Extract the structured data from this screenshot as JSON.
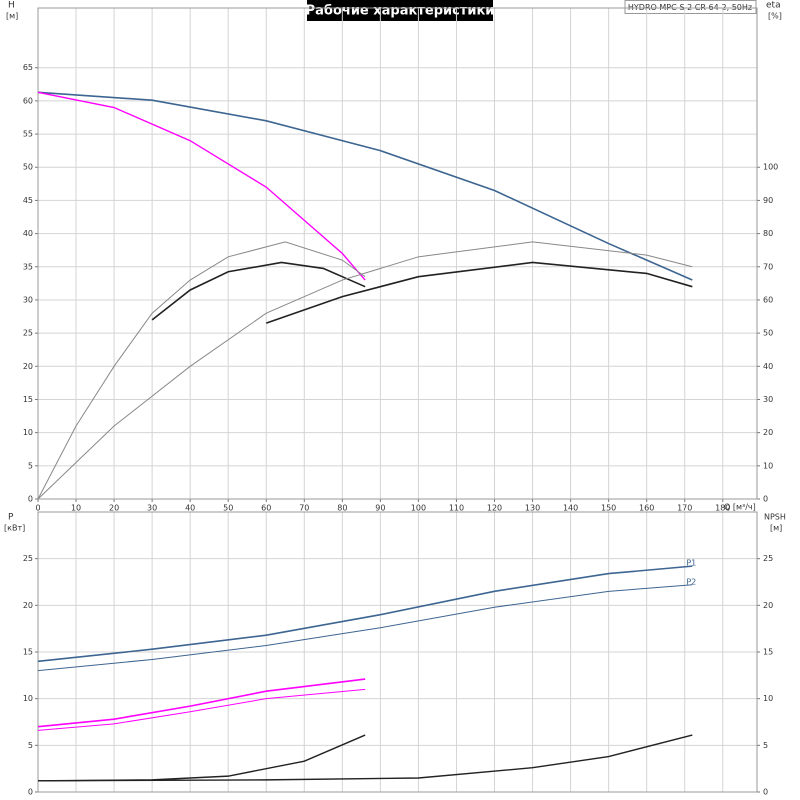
{
  "chart_data": [
    {
      "type": "line",
      "title": "Рабочие характеристики",
      "subtitle": "HYDRO MPC-S 2 CR 64-2, 50Hz",
      "y_label": "H",
      "y_unit": "[м]",
      "y2_label": "eta",
      "y2_unit": "[%]",
      "x_label": "Q [м³/ч]",
      "xlim": [
        0,
        189
      ],
      "xticks": [
        0,
        10,
        20,
        30,
        40,
        50,
        60,
        70,
        80,
        90,
        100,
        110,
        120,
        130,
        140,
        150,
        160,
        170,
        180
      ],
      "ylim": [
        0,
        74
      ],
      "yticks": [
        0,
        5,
        10,
        15,
        20,
        25,
        30,
        35,
        40,
        45,
        50,
        55,
        60,
        65
      ],
      "y2lim": [
        0,
        148
      ],
      "y2ticks": [
        0,
        10,
        20,
        30,
        40,
        50,
        60,
        70,
        80,
        90,
        100
      ],
      "grid": true,
      "series": [
        {
          "color": "#3d6591",
          "width": 1.6,
          "x": [
            0,
            30,
            60,
            90,
            120,
            150,
            172
          ],
          "values": [
            61.3,
            60.1,
            57,
            52.5,
            46.5,
            38.5,
            33
          ]
        },
        {
          "color": "#ff00ff",
          "width": 1.4,
          "x": [
            0,
            20,
            40,
            60,
            80,
            86
          ],
          "values": [
            61.3,
            59,
            54,
            47,
            37,
            33
          ]
        },
        {
          "color": "#888888",
          "width": 1,
          "axis": "y2",
          "x": [
            0,
            10,
            20,
            30,
            40,
            50,
            65,
            80,
            86
          ],
          "values": [
            0,
            22,
            40,
            56,
            66,
            73,
            77.5,
            72,
            67
          ]
        },
        {
          "color": "#222222",
          "width": 1.6,
          "axis": "y2",
          "x": [
            30,
            40,
            50,
            64,
            75,
            86
          ],
          "values": [
            54,
            63,
            68.5,
            71.3,
            69.5,
            64
          ]
        },
        {
          "color": "#888888",
          "width": 1,
          "axis": "y2",
          "x": [
            0,
            20,
            40,
            60,
            80,
            100,
            130,
            160,
            172
          ],
          "values": [
            0,
            22,
            40,
            56,
            66,
            73,
            77.5,
            73.5,
            70
          ]
        },
        {
          "color": "#222222",
          "width": 1.6,
          "axis": "y2",
          "x": [
            60,
            80,
            100,
            130,
            160,
            172
          ],
          "values": [
            53,
            61,
            67,
            71.3,
            68,
            64
          ]
        }
      ]
    },
    {
      "type": "line",
      "y_label": "P",
      "y_unit": "[кВт]",
      "y2_label": "NPSH",
      "y2_unit": "[м]",
      "xlim": [
        0,
        189
      ],
      "ylim": [
        0,
        30
      ],
      "yticks": [
        0,
        5,
        10,
        15,
        20,
        25
      ],
      "y2lim": [
        0,
        30
      ],
      "y2ticks": [
        0,
        5,
        10,
        15,
        20,
        25
      ],
      "grid": true,
      "series": [
        {
          "name": "P1",
          "color": "#3d6591",
          "width": 1.6,
          "x": [
            0,
            30,
            60,
            90,
            120,
            150,
            172
          ],
          "values": [
            14,
            15.3,
            16.8,
            19,
            21.5,
            23.4,
            24.2
          ]
        },
        {
          "name": "P2",
          "color": "#3d6591",
          "width": 1,
          "x": [
            0,
            30,
            60,
            90,
            120,
            150,
            172
          ],
          "values": [
            13,
            14.2,
            15.7,
            17.6,
            19.8,
            21.5,
            22.2
          ]
        },
        {
          "color": "#ff00ff",
          "width": 1.6,
          "x": [
            0,
            20,
            40,
            60,
            86
          ],
          "values": [
            7,
            7.8,
            9.2,
            10.8,
            12.1
          ]
        },
        {
          "color": "#ff00ff",
          "width": 1,
          "x": [
            0,
            20,
            40,
            60,
            86
          ],
          "values": [
            6.6,
            7.3,
            8.6,
            10,
            11
          ]
        },
        {
          "color": "#222222",
          "width": 1.4,
          "axis": "y2",
          "x": [
            0,
            30,
            50,
            70,
            86
          ],
          "values": [
            1.2,
            1.3,
            1.7,
            3.3,
            6.1
          ]
        },
        {
          "color": "#222222",
          "width": 1.4,
          "axis": "y2",
          "x": [
            0,
            60,
            100,
            130,
            150,
            172
          ],
          "values": [
            1.2,
            1.3,
            1.5,
            2.6,
            3.8,
            6.1
          ]
        }
      ]
    }
  ]
}
